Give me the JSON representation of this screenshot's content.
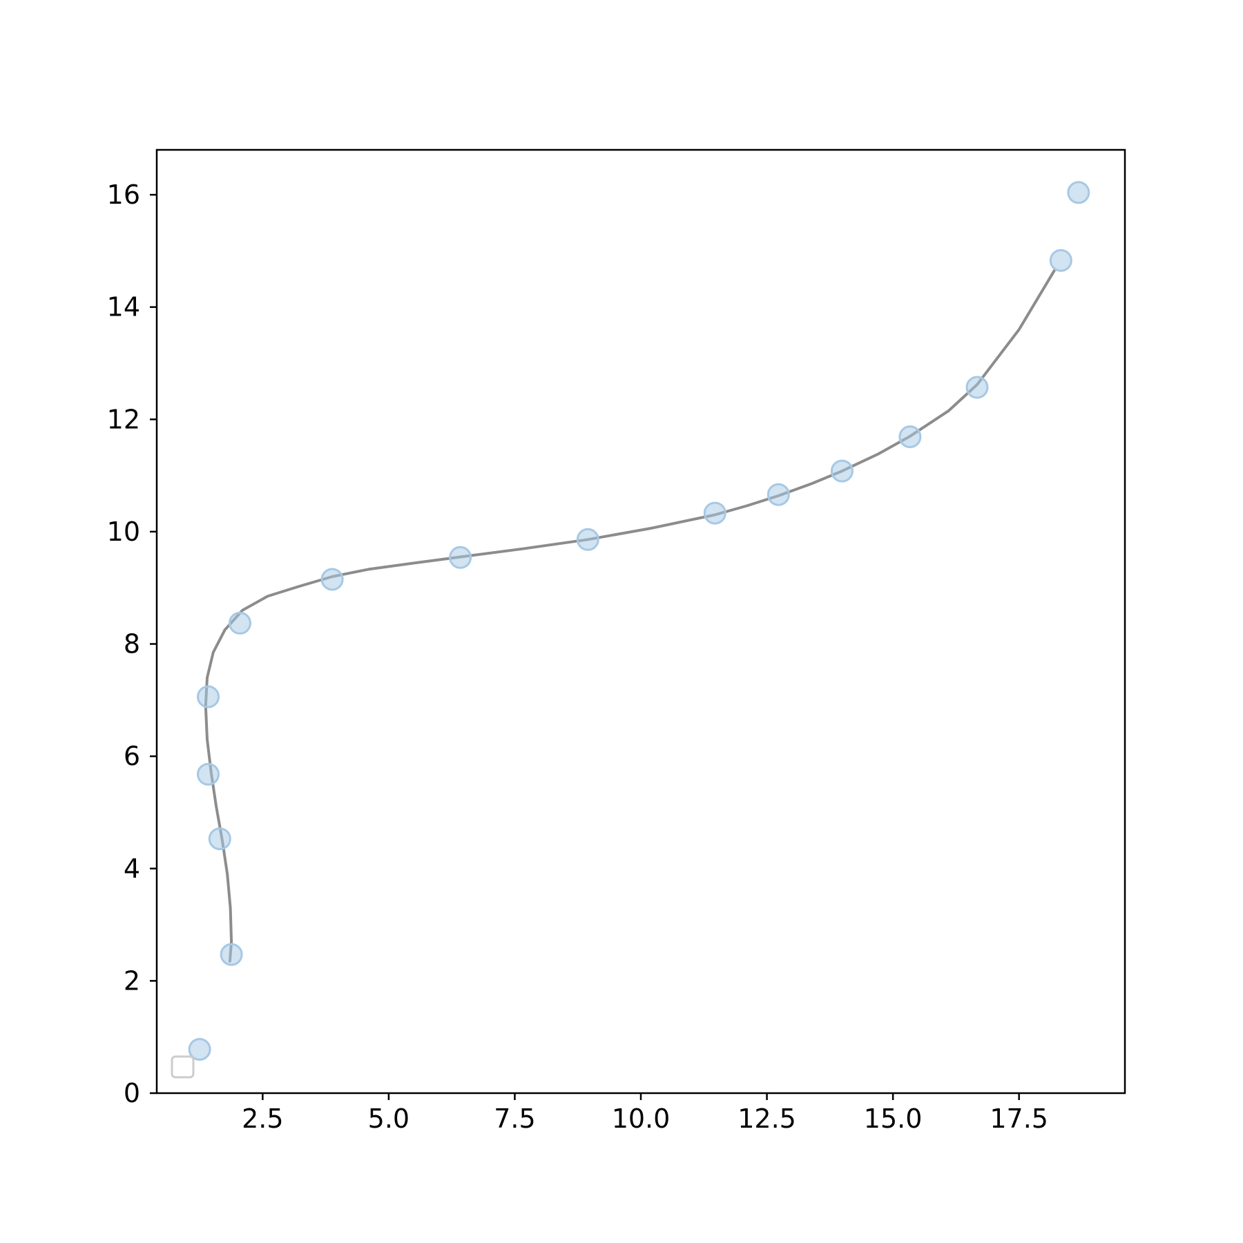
{
  "chart_data": {
    "type": "scatter",
    "title": "",
    "xlabel": "",
    "ylabel": "",
    "xlim": [
      0.4,
      19.6
    ],
    "ylim": [
      0,
      16.8
    ],
    "x_ticks": [
      2.5,
      5.0,
      7.5,
      10.0,
      12.5,
      15.0,
      17.5
    ],
    "x_tick_labels": [
      "2.5",
      "5.0",
      "7.5",
      "10.0",
      "12.5",
      "15.0",
      "17.5"
    ],
    "y_ticks": [
      0,
      2,
      4,
      6,
      8,
      10,
      12,
      14,
      16
    ],
    "y_tick_labels": [
      "0",
      "2",
      "4",
      "6",
      "8",
      "10",
      "12",
      "14",
      "16"
    ],
    "grid": false,
    "legend": "lower-left, empty entry",
    "series": [
      {
        "kind": "scatter",
        "color": "#a6c8e4",
        "x": [
          1.25,
          1.88,
          1.65,
          1.42,
          1.42,
          2.05,
          3.88,
          6.42,
          8.95,
          11.47,
          12.73,
          13.99,
          15.34,
          16.67,
          18.33,
          18.68
        ],
        "y": [
          0.78,
          2.47,
          4.53,
          5.68,
          7.06,
          8.37,
          9.15,
          9.54,
          9.86,
          10.33,
          10.66,
          11.08,
          11.69,
          12.57,
          14.83,
          16.04
        ]
      },
      {
        "kind": "line",
        "color": "#8c8c8c",
        "x": [
          1.85,
          1.88,
          1.86,
          1.8,
          1.7,
          1.58,
          1.48,
          1.4,
          1.37,
          1.4,
          1.52,
          1.75,
          2.1,
          2.6,
          3.2,
          3.88,
          4.6,
          5.5,
          6.42,
          7.7,
          8.95,
          10.2,
          11.47,
          12.1,
          12.73,
          13.4,
          13.99,
          14.7,
          15.34,
          16.1,
          16.67,
          17.5,
          18.2
        ],
        "y": [
          2.35,
          2.7,
          3.3,
          3.9,
          4.5,
          5.1,
          5.7,
          6.3,
          6.9,
          7.4,
          7.85,
          8.25,
          8.6,
          8.85,
          9.02,
          9.2,
          9.33,
          9.44,
          9.55,
          9.7,
          9.86,
          10.06,
          10.3,
          10.46,
          10.64,
          10.86,
          11.08,
          11.38,
          11.7,
          12.15,
          12.62,
          13.6,
          14.65
        ]
      }
    ]
  }
}
